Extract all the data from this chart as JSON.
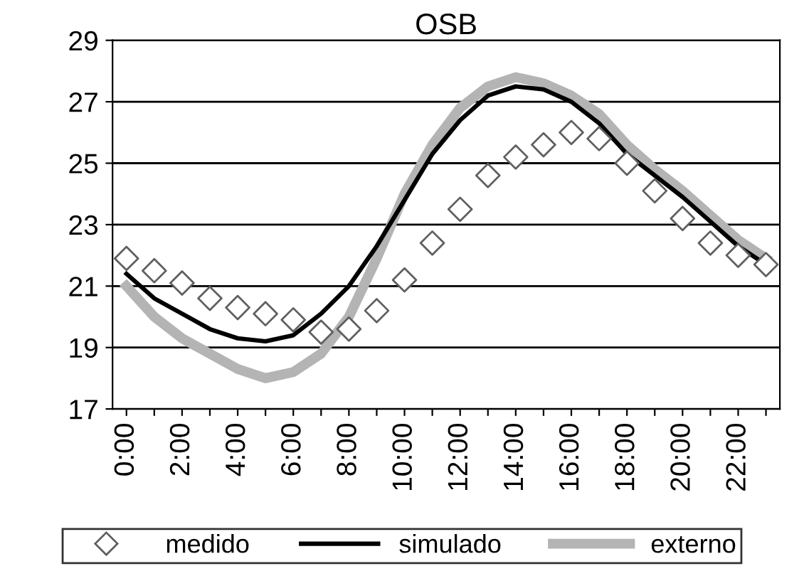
{
  "chart_data": {
    "type": "line",
    "title": "OSB",
    "categories": [
      "0:00",
      null,
      "2:00",
      null,
      "4:00",
      null,
      "6:00",
      null,
      "8:00",
      null,
      "10:00",
      null,
      "12:00",
      null,
      "14:00",
      null,
      "16:00",
      null,
      "18:00",
      null,
      "20:00",
      null,
      "22:00",
      null
    ],
    "series": [
      {
        "name": "medido",
        "type": "scatter",
        "marker": "diamond",
        "color": "#606060",
        "values": [
          21.9,
          21.5,
          21.1,
          20.6,
          20.3,
          20.1,
          19.9,
          19.5,
          19.6,
          20.2,
          21.2,
          22.4,
          23.5,
          24.6,
          25.2,
          25.6,
          26.0,
          25.8,
          25.0,
          24.1,
          23.2,
          22.4,
          22.0,
          21.7
        ]
      },
      {
        "name": "simulado",
        "color": "#000000",
        "values": [
          21.4,
          20.6,
          20.1,
          19.6,
          19.3,
          19.2,
          19.4,
          20.1,
          21.0,
          22.3,
          23.8,
          25.3,
          26.4,
          27.2,
          27.5,
          27.4,
          27.0,
          26.3,
          25.3,
          24.6,
          23.9,
          23.1,
          22.3,
          21.7
        ]
      },
      {
        "name": "externo",
        "color": "#b4b4b4",
        "values": [
          21.0,
          20.0,
          19.3,
          18.8,
          18.3,
          18.0,
          18.2,
          18.8,
          20.0,
          21.9,
          24.0,
          25.6,
          26.8,
          27.5,
          27.8,
          27.6,
          27.2,
          26.6,
          25.6,
          24.8,
          24.1,
          23.3,
          22.5,
          21.9
        ]
      }
    ],
    "ylim": [
      17,
      29
    ],
    "yticks": [
      17,
      19,
      21,
      23,
      25,
      27,
      29
    ],
    "grid": "y",
    "legend": "bottom"
  }
}
